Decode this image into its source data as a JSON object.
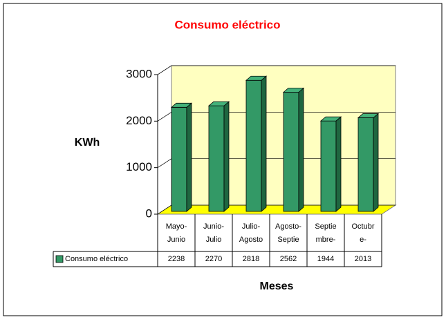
{
  "chart_data": {
    "type": "bar3d",
    "title": "Consumo eléctrico",
    "x_label": "Meses",
    "y_label": "KWh",
    "categories": [
      [
        "Mayo-",
        "Junio"
      ],
      [
        "Junio-",
        "Julio"
      ],
      [
        "Julio-",
        "Agosto"
      ],
      [
        "Agosto-",
        "Septie"
      ],
      [
        "Septie",
        "mbre-"
      ],
      [
        "Octubr",
        "e-"
      ]
    ],
    "series": [
      {
        "name": "Consumo eléctrico",
        "color": "#339966",
        "values": [
          2238,
          2270,
          2818,
          2562,
          1944,
          2013
        ]
      }
    ],
    "ylim": [
      0,
      3000
    ],
    "yticks": [
      0,
      1000,
      2000,
      3000
    ],
    "grid": true,
    "data_table": true
  }
}
